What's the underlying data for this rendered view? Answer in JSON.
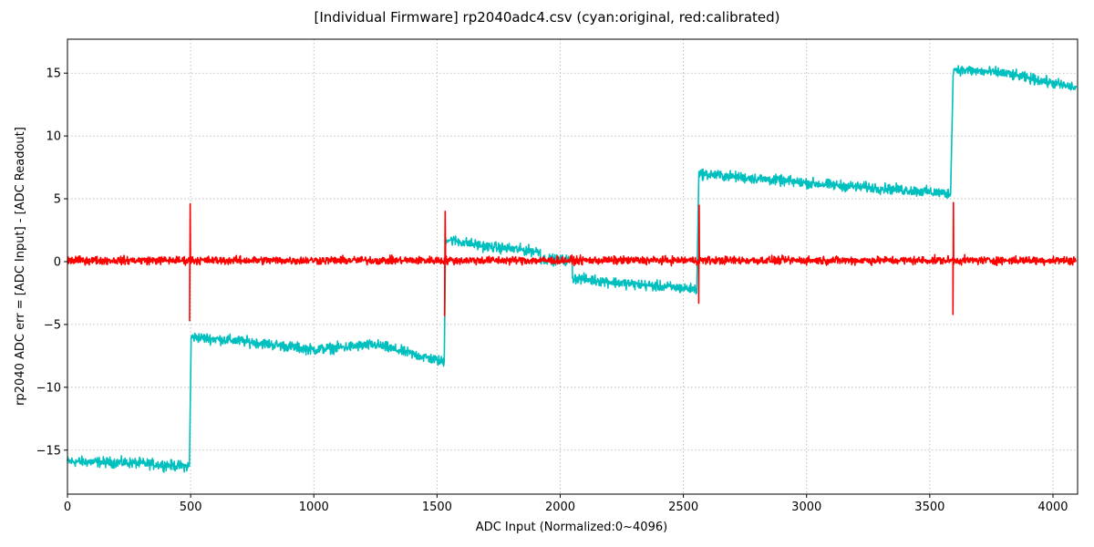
{
  "chart_data": {
    "type": "line",
    "title": "[Individual Firmware] rp2040adc4.csv (cyan:original, red:calibrated)",
    "xlabel": "ADC Input (Normalized:0~4096)",
    "ylabel": "rp2040 ADC err = [ADC Input] - [ADC Readout]",
    "xlim": [
      0,
      4100
    ],
    "ylim": [
      -18.5,
      17.7
    ],
    "xticks": [
      0,
      500,
      1000,
      1500,
      2000,
      2500,
      3000,
      3500,
      4000
    ],
    "yticks": [
      -15,
      -10,
      -5,
      0,
      5,
      10,
      15
    ],
    "ytick_labels": [
      "−15",
      "−10",
      "−5",
      "0",
      "5",
      "10",
      "15"
    ],
    "grid": true,
    "series": [
      {
        "name": "original",
        "color": "#00bfbf",
        "noise": 0.45,
        "segments": [
          {
            "x": [
              0,
              250,
              495
            ],
            "y": [
              -15.9,
              -16.0,
              -16.3
            ]
          },
          {
            "x": [
              502,
              750,
              1000,
              1250,
              1530
            ],
            "y": [
              -6.0,
              -6.4,
              -7.0,
              -6.6,
              -8.0
            ]
          },
          {
            "x": [
              1535,
              1700,
              1920
            ],
            "y": [
              1.8,
              1.2,
              0.8
            ]
          },
          {
            "x": [
              1920,
              2050
            ],
            "y": [
              0.2,
              0.1
            ]
          },
          {
            "x": [
              2050,
              2300,
              2555
            ],
            "y": [
              -1.3,
              -1.8,
              -2.2
            ]
          },
          {
            "x": [
              2563,
              2800,
              3100,
              3400,
              3585
            ],
            "y": [
              7.0,
              6.6,
              6.1,
              5.7,
              5.4
            ]
          },
          {
            "x": [
              3595,
              3800,
              4000,
              4096
            ],
            "y": [
              15.3,
              15.0,
              14.2,
              13.8
            ]
          }
        ]
      },
      {
        "name": "calibrated",
        "color": "#ff0000",
        "noise": 0.35,
        "baseline": 0.1,
        "spikes": [
          {
            "x": 497,
            "low": -4.7,
            "high": 4.6
          },
          {
            "x": 1532,
            "low": -4.3,
            "high": 4.0
          },
          {
            "x": 2563,
            "low": -3.3,
            "high": 4.5
          },
          {
            "x": 3595,
            "low": -4.2,
            "high": 4.7
          }
        ]
      }
    ]
  }
}
